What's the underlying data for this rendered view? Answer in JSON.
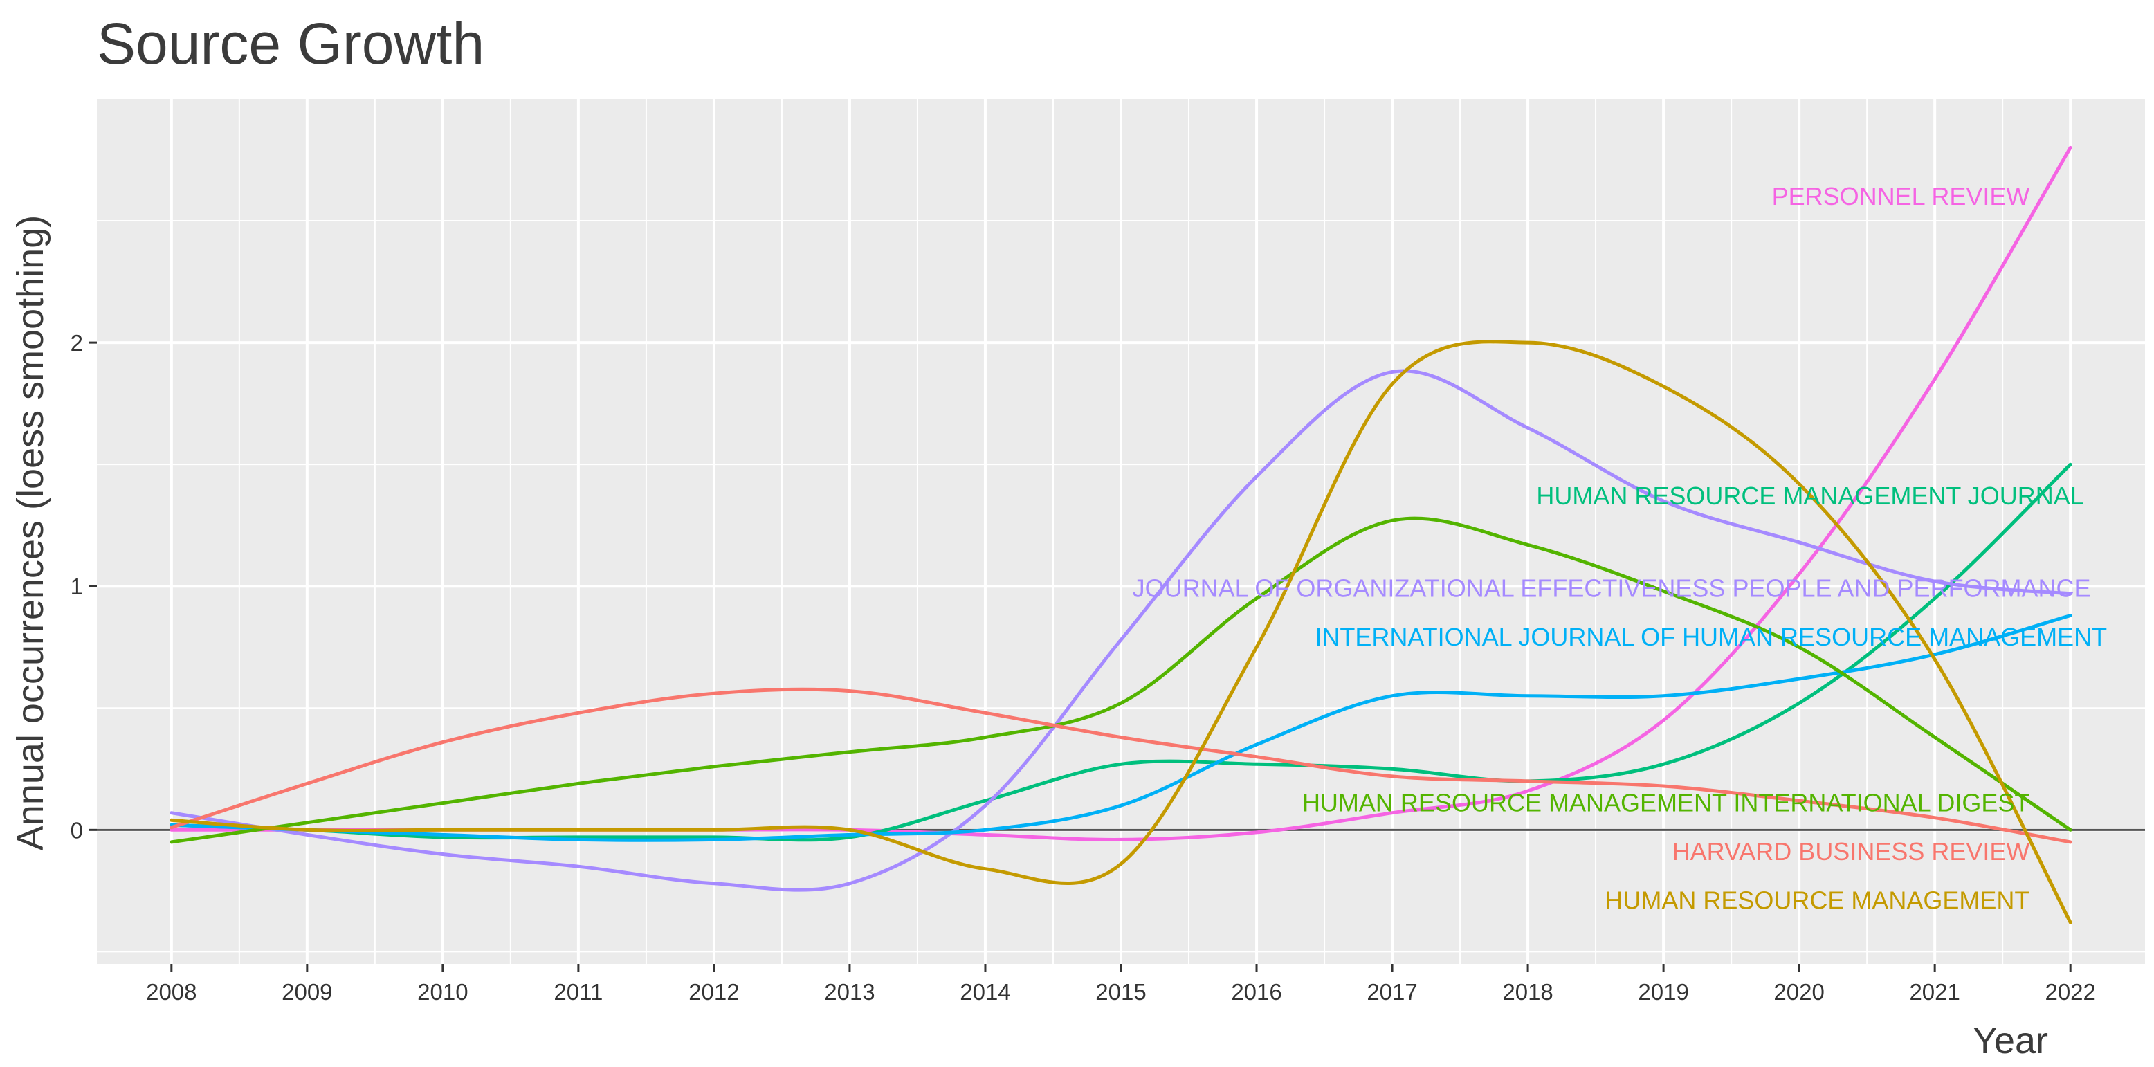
{
  "chart_data": {
    "type": "line",
    "title": "Source Growth",
    "xlabel": "Year",
    "ylabel": "Annual occurrences (loess smoothing)",
    "xlim": [
      2007.45,
      2022.55
    ],
    "ylim": [
      -0.55,
      3.0
    ],
    "x_ticks": [
      2008,
      2009,
      2010,
      2011,
      2012,
      2013,
      2014,
      2015,
      2016,
      2017,
      2018,
      2019,
      2020,
      2021,
      2022
    ],
    "x_tick_labels": [
      "2008",
      "2009",
      "2010",
      "2011",
      "2012",
      "2013",
      "2014",
      "2015",
      "2016",
      "2017",
      "2018",
      "2019",
      "2020",
      "2021",
      "2022"
    ],
    "y_ticks": [
      0,
      1,
      2
    ],
    "y_tick_labels": [
      "0",
      "1",
      "2"
    ],
    "grid": true,
    "legend": "direct labels near series ends",
    "background": "#ebebeb",
    "series": [
      {
        "name": "PERSONNEL REVIEW",
        "color": "#f564e3",
        "x": [
          2008,
          2009,
          2010,
          2011,
          2012,
          2013,
          2014,
          2015,
          2016,
          2017,
          2018,
          2019,
          2020,
          2021,
          2022
        ],
        "values": [
          0.0,
          0.0,
          0.0,
          0.0,
          0.0,
          0.0,
          -0.02,
          -0.04,
          -0.01,
          0.07,
          0.16,
          0.45,
          1.05,
          1.85,
          2.8
        ]
      },
      {
        "name": "HUMAN RESOURCE MANAGEMENT JOURNAL",
        "color": "#00bf7d",
        "x": [
          2008,
          2009,
          2010,
          2011,
          2012,
          2013,
          2014,
          2015,
          2016,
          2017,
          2018,
          2019,
          2020,
          2021,
          2022
        ],
        "values": [
          0.02,
          0.0,
          -0.03,
          -0.03,
          -0.03,
          -0.03,
          0.12,
          0.27,
          0.27,
          0.25,
          0.2,
          0.27,
          0.52,
          0.95,
          1.5
        ]
      },
      {
        "name": "JOURNAL OF ORGANIZATIONAL EFFECTIVENESS PEOPLE AND PERFORMANCE",
        "color": "#a58aff",
        "x": [
          2008,
          2009,
          2010,
          2011,
          2012,
          2013,
          2014,
          2015,
          2016,
          2017,
          2018,
          2019,
          2020,
          2021,
          2022
        ],
        "values": [
          0.07,
          -0.02,
          -0.1,
          -0.15,
          -0.22,
          -0.22,
          0.1,
          0.78,
          1.45,
          1.88,
          1.65,
          1.35,
          1.18,
          1.02,
          0.97
        ]
      },
      {
        "name": "INTERNATIONAL JOURNAL OF HUMAN RESOURCE MANAGEMENT",
        "color": "#00b0f6",
        "x": [
          2008,
          2009,
          2010,
          2011,
          2012,
          2013,
          2014,
          2015,
          2016,
          2017,
          2018,
          2019,
          2020,
          2021,
          2022
        ],
        "values": [
          0.02,
          0.0,
          -0.02,
          -0.04,
          -0.04,
          -0.02,
          0.0,
          0.1,
          0.35,
          0.55,
          0.55,
          0.55,
          0.62,
          0.72,
          0.88
        ]
      },
      {
        "name": "HUMAN RESOURCE MANAGEMENT INTERNATIONAL DIGEST",
        "color": "#53b400",
        "x": [
          2008,
          2009,
          2010,
          2011,
          2012,
          2013,
          2014,
          2015,
          2016,
          2017,
          2018,
          2019,
          2020,
          2021,
          2022
        ],
        "values": [
          -0.05,
          0.03,
          0.11,
          0.19,
          0.26,
          0.32,
          0.38,
          0.52,
          0.95,
          1.27,
          1.17,
          0.98,
          0.75,
          0.38,
          0.0
        ]
      },
      {
        "name": "HARVARD BUSINESS REVIEW",
        "color": "#f8766d",
        "x": [
          2008,
          2009,
          2010,
          2011,
          2012,
          2013,
          2014,
          2015,
          2016,
          2017,
          2018,
          2019,
          2020,
          2021,
          2022
        ],
        "values": [
          0.01,
          0.19,
          0.36,
          0.48,
          0.56,
          0.57,
          0.48,
          0.38,
          0.3,
          0.22,
          0.2,
          0.18,
          0.12,
          0.05,
          -0.05
        ]
      },
      {
        "name": "HUMAN RESOURCE MANAGEMENT",
        "color": "#c49a00",
        "x": [
          2008,
          2009,
          2010,
          2011,
          2012,
          2013,
          2014,
          2015,
          2016,
          2017,
          2018,
          2019,
          2020,
          2021,
          2022
        ],
        "values": [
          0.04,
          0.0,
          0.0,
          0.0,
          0.0,
          0.0,
          -0.16,
          -0.14,
          0.75,
          1.83,
          2.0,
          1.82,
          1.42,
          0.7,
          -0.38
        ]
      }
    ],
    "annotations": [
      {
        "text": "PERSONNEL REVIEW",
        "color": "#f564e3",
        "x": 2021.7,
        "y": 2.6,
        "anchor": "end"
      },
      {
        "text": "HUMAN RESOURCE MANAGEMENT JOURNAL",
        "color": "#00bf7d",
        "x": 2022.1,
        "y": 1.37,
        "anchor": "end"
      },
      {
        "text": "JOURNAL OF ORGANIZATIONAL EFFECTIVENESS PEOPLE AND PERFORMANCE",
        "color": "#a58aff",
        "x": 2022.15,
        "y": 0.99,
        "anchor": "end"
      },
      {
        "text": "INTERNATIONAL JOURNAL OF HUMAN RESOURCE MANAGEMENT",
        "color": "#00b0f6",
        "x": 2022.27,
        "y": 0.79,
        "anchor": "end"
      },
      {
        "text": "HUMAN RESOURCE MANAGEMENT INTERNATIONAL DIGEST",
        "color": "#53b400",
        "x": 2021.7,
        "y": 0.11,
        "anchor": "end"
      },
      {
        "text": "HARVARD BUSINESS REVIEW",
        "color": "#f8766d",
        "x": 2021.7,
        "y": -0.09,
        "anchor": "end"
      },
      {
        "text": "HUMAN RESOURCE MANAGEMENT",
        "color": "#c49a00",
        "x": 2021.7,
        "y": -0.29,
        "anchor": "end"
      }
    ]
  }
}
